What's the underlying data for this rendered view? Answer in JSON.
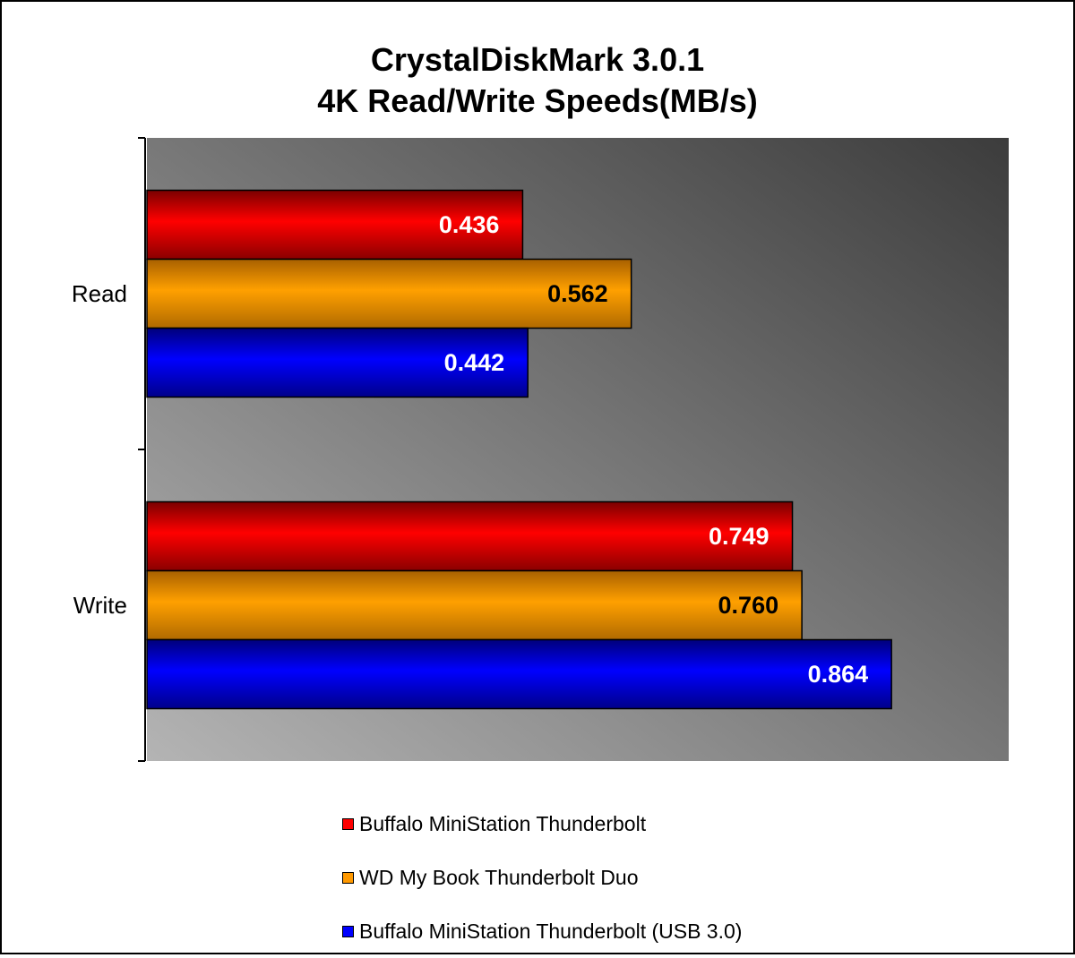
{
  "chart_data": {
    "type": "bar",
    "orientation": "horizontal",
    "title": "CrystalDiskMark 3.0.1",
    "subtitle": "4K Read/Write Speeds(MB/s)",
    "categories": [
      "Read",
      "Write"
    ],
    "series": [
      {
        "name": "Buffalo MiniStation Thunderbolt",
        "color": "#ff0000",
        "label_color": "#ffffff",
        "values": [
          0.436,
          0.749
        ],
        "labels": [
          "0.436",
          "0.749"
        ]
      },
      {
        "name": "WD My Book Thunderbolt Duo",
        "color": "#ff9900",
        "label_color": "#000000",
        "values": [
          0.562,
          0.76
        ],
        "labels": [
          "0.562",
          "0.760"
        ]
      },
      {
        "name": "Buffalo MiniStation Thunderbolt (USB 3.0)",
        "color": "#0000ff",
        "label_color": "#ffffff",
        "values": [
          0.442,
          0.864
        ],
        "labels": [
          "0.442",
          "0.864"
        ]
      }
    ],
    "xlim": [
      0,
      1.0
    ],
    "legend_position": "bottom",
    "grid": false,
    "plot_background": "gradient gray"
  }
}
